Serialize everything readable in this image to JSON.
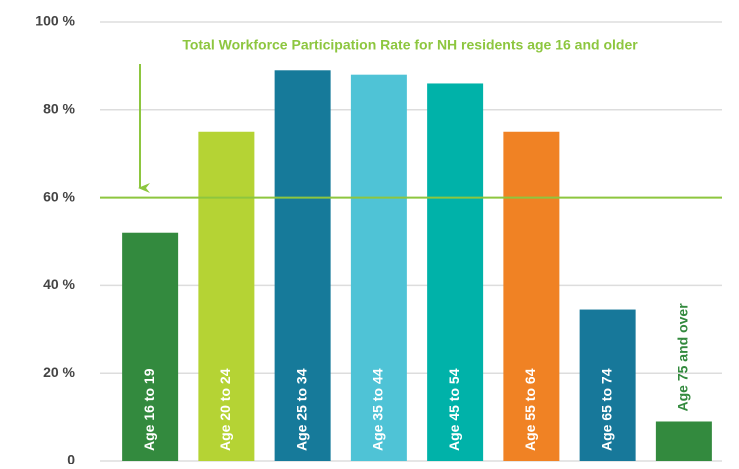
{
  "chart_data": {
    "type": "bar",
    "categories": [
      "Age 16 to 19",
      "Age 20 to 24",
      "Age 25 to 34",
      "Age 35 to 44",
      "Age 45 to 54",
      "Age 55 to 64",
      "Age 65 to 74",
      "Age 75 and over"
    ],
    "values": [
      52,
      75,
      89,
      88,
      86,
      75,
      34.5,
      9
    ],
    "colors": [
      "#338a3e",
      "#b5d334",
      "#167a9a",
      "#4fc3d6",
      "#00b2a9",
      "#f08224",
      "#17789a",
      "#338a3e"
    ],
    "ylim": [
      0,
      100
    ],
    "yticks": [
      0,
      {
        "value": 20,
        "label": "20 %"
      },
      {
        "value": 40,
        "label": "40 %"
      },
      {
        "value": 60,
        "label": "60 %"
      },
      {
        "value": 80,
        "label": "80 %"
      },
      {
        "value": 100,
        "label": "100 %"
      }
    ],
    "grid": true,
    "reference_line": {
      "value": 60,
      "label": "Total Workforce Participation Rate for NH residents age 16 and older",
      "color": "#8dc63f"
    }
  }
}
